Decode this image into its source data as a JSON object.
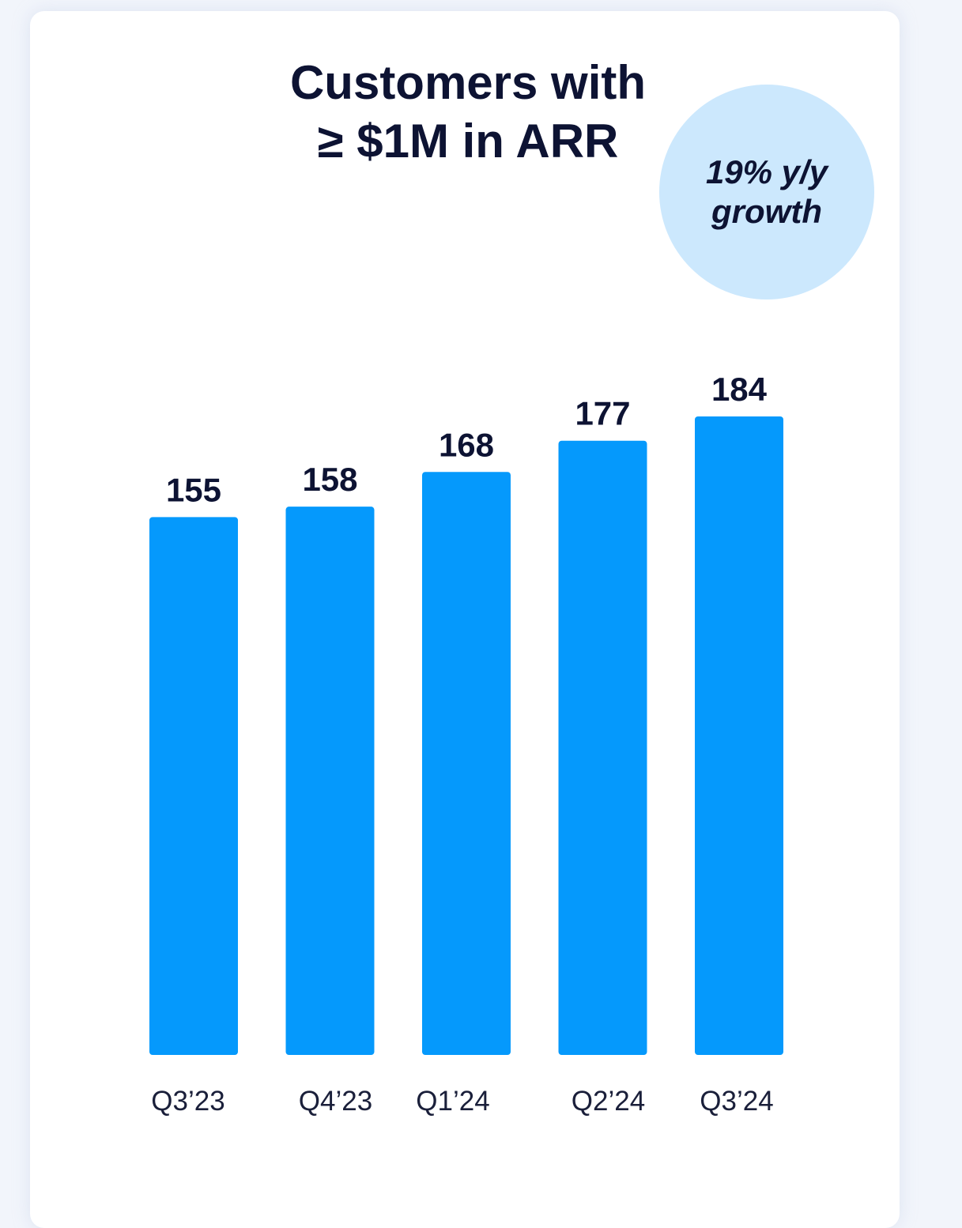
{
  "chart_data": {
    "type": "bar",
    "title": [
      "Customers with",
      "≥ $1M in ARR"
    ],
    "categories": [
      "Q3’23",
      "Q4’23",
      "Q1’24",
      "Q2’24",
      "Q3’24"
    ],
    "values": [
      155,
      158,
      168,
      177,
      184
    ],
    "data_labels": [
      "155",
      "158",
      "168",
      "177",
      "184"
    ],
    "annotation": [
      "19% y/y",
      "growth"
    ],
    "xlabel": "",
    "ylabel": "",
    "ylim": [
      0,
      184
    ],
    "grid": false,
    "legend": "none",
    "colors": {
      "bar": "#0599fc",
      "badge": "#cce8fd",
      "text": "#0d1333"
    }
  }
}
